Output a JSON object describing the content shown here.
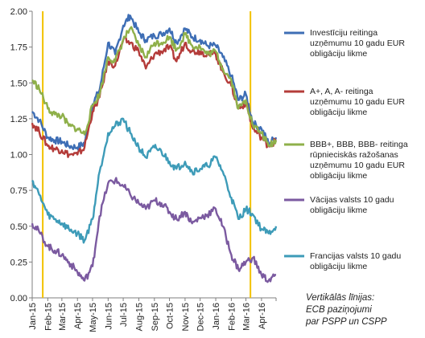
{
  "chart_data": {
    "type": "line",
    "title": "",
    "xlabel": "",
    "ylabel": "",
    "ylim": [
      0,
      2
    ],
    "y_ticks": [
      "0.00",
      "0.25",
      "0.50",
      "0.75",
      "1.00",
      "1.25",
      "1.50",
      "1.75",
      "2.00"
    ],
    "x_ticks": [
      "Jan-15",
      "Feb-15",
      "Mar-15",
      "Apr-15",
      "May-15",
      "Jun-15",
      "Jul-15",
      "Aug-15",
      "Sep-15",
      "Oct-15",
      "Nov-15",
      "Dec-15",
      "Jan-16",
      "Feb-16",
      "Mar-16",
      "Apr-16"
    ],
    "x_range": [
      "2015-01-01",
      "2016-04-30"
    ],
    "grid": false,
    "legend_position": "right",
    "vertical_lines": {
      "dates": [
        "2015-01-22",
        "2016-03-10"
      ],
      "color": "#f2c200",
      "note": "Vertikālās līnijas: ECB paziņojumi par PSPP un CSPP"
    },
    "x": [
      "2015-01-01",
      "2015-01-15",
      "2015-02-01",
      "2015-02-15",
      "2015-03-01",
      "2015-03-15",
      "2015-04-01",
      "2015-04-15",
      "2015-05-01",
      "2015-05-15",
      "2015-06-01",
      "2015-06-15",
      "2015-07-01",
      "2015-07-15",
      "2015-08-01",
      "2015-08-15",
      "2015-09-01",
      "2015-09-15",
      "2015-10-01",
      "2015-10-15",
      "2015-11-01",
      "2015-11-15",
      "2015-12-01",
      "2015-12-15",
      "2016-01-01",
      "2016-01-15",
      "2016-02-01",
      "2016-02-15",
      "2016-03-01",
      "2016-03-15",
      "2016-04-01",
      "2016-04-15",
      "2016-04-30"
    ],
    "series": [
      {
        "name": "Investīciju reitinga uzņēmumu 10 gadu EUR obligāciju likme",
        "color": "#3e6eb5",
        "values": [
          1.3,
          1.24,
          1.12,
          1.1,
          1.09,
          1.06,
          1.05,
          1.08,
          1.35,
          1.45,
          1.78,
          1.7,
          1.9,
          1.97,
          1.85,
          1.8,
          1.83,
          1.84,
          1.88,
          1.78,
          1.88,
          1.82,
          1.8,
          1.76,
          1.76,
          1.68,
          1.55,
          1.38,
          1.42,
          1.22,
          1.18,
          1.08,
          1.12
        ]
      },
      {
        "name": "A+, A, A- reitinga uzņēmumu 10 gadu EUR obligāciju likme",
        "color": "#b43c3a",
        "values": [
          1.22,
          1.16,
          1.06,
          1.04,
          1.03,
          1.0,
          1.0,
          1.05,
          1.3,
          1.4,
          1.65,
          1.62,
          1.8,
          1.78,
          1.72,
          1.6,
          1.7,
          1.72,
          1.75,
          1.65,
          1.78,
          1.72,
          1.72,
          1.7,
          1.7,
          1.58,
          1.48,
          1.32,
          1.36,
          1.18,
          1.12,
          1.06,
          1.1
        ]
      },
      {
        "name": "BBB+, BBB, BBB- reitinga rūpnieciskās ražošanas uzņēmumu 10 gadu EUR obligāciju likme",
        "color": "#8fb04a",
        "values": [
          1.52,
          1.46,
          1.32,
          1.28,
          1.27,
          1.2,
          1.18,
          1.14,
          1.34,
          1.42,
          1.68,
          1.65,
          1.8,
          1.88,
          1.76,
          1.68,
          1.78,
          1.78,
          1.82,
          1.73,
          1.84,
          1.76,
          1.75,
          1.7,
          1.72,
          1.6,
          1.52,
          1.32,
          1.38,
          1.2,
          1.15,
          1.06,
          1.1
        ]
      },
      {
        "name": "Vācijas valsts 10 gadu obligāciju likme",
        "color": "#7b5aa0",
        "values": [
          0.52,
          0.46,
          0.36,
          0.33,
          0.3,
          0.25,
          0.18,
          0.12,
          0.22,
          0.57,
          0.8,
          0.82,
          0.78,
          0.72,
          0.66,
          0.62,
          0.68,
          0.66,
          0.6,
          0.55,
          0.6,
          0.52,
          0.56,
          0.58,
          0.62,
          0.5,
          0.3,
          0.2,
          0.25,
          0.28,
          0.16,
          0.12,
          0.16
        ]
      },
      {
        "name": "Francijas valsts 10 gadu obligāciju likme",
        "color": "#3d9bb8",
        "values": [
          0.82,
          0.72,
          0.58,
          0.55,
          0.52,
          0.48,
          0.45,
          0.4,
          0.55,
          0.88,
          1.15,
          1.2,
          1.25,
          1.15,
          1.05,
          0.98,
          1.05,
          1.02,
          0.95,
          0.9,
          0.95,
          0.88,
          0.9,
          0.92,
          0.98,
          0.88,
          0.7,
          0.55,
          0.62,
          0.58,
          0.48,
          0.45,
          0.5
        ]
      }
    ]
  }
}
